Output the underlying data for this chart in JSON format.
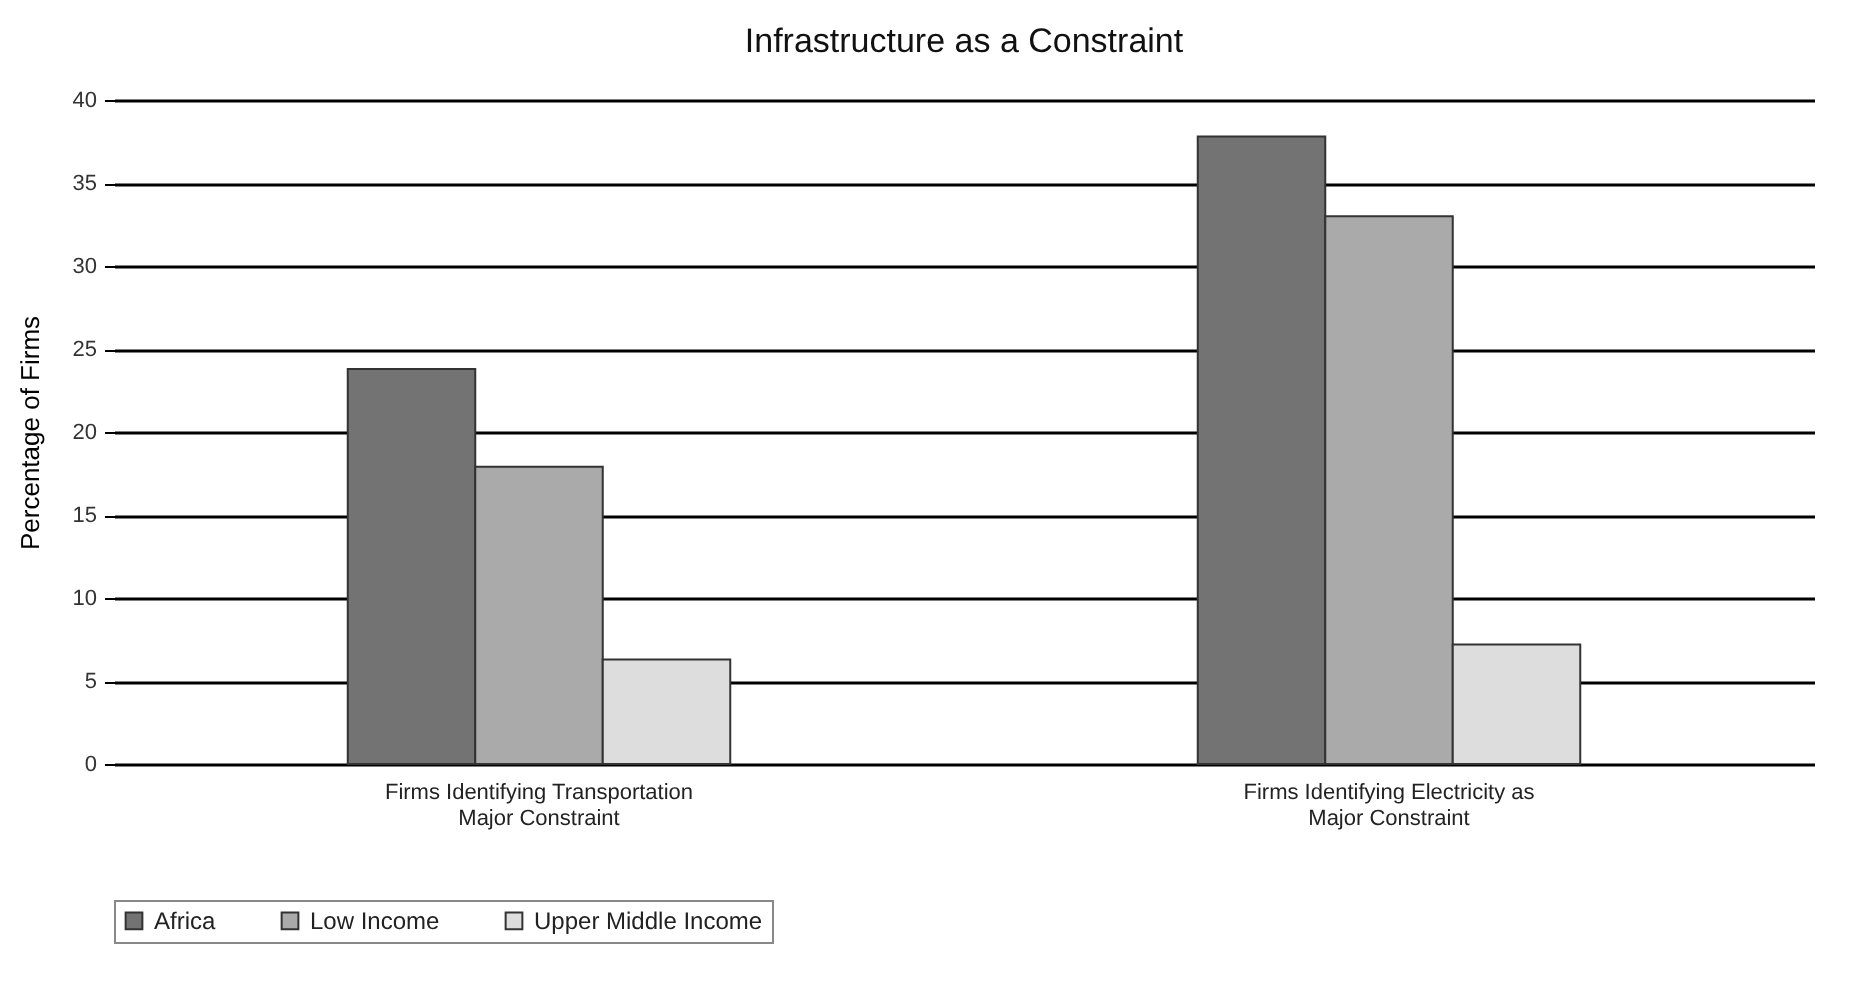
{
  "chart_data": {
    "type": "bar",
    "title": "Infrastructure as a Constraint",
    "ylabel": "Percentage of Firms",
    "categories": [
      "Firms Identifying Transportation\nMajor Constraint",
      "Firms Identifying Electricity as\nMajor Constraint"
    ],
    "series": [
      {
        "name": "Africa",
        "color": "#737373",
        "values": [
          23.8,
          37.8
        ]
      },
      {
        "name": "Low Income",
        "color": "#aaaaaa",
        "values": [
          17.9,
          33.0
        ]
      },
      {
        "name": "Upper Middle Income",
        "color": "#dddddd",
        "values": [
          6.3,
          7.2
        ]
      }
    ],
    "ylim": [
      0,
      40
    ],
    "yticks": [
      0,
      5,
      10,
      15,
      20,
      25,
      30,
      35,
      40
    ],
    "grid": "y",
    "legend": "bottom"
  }
}
